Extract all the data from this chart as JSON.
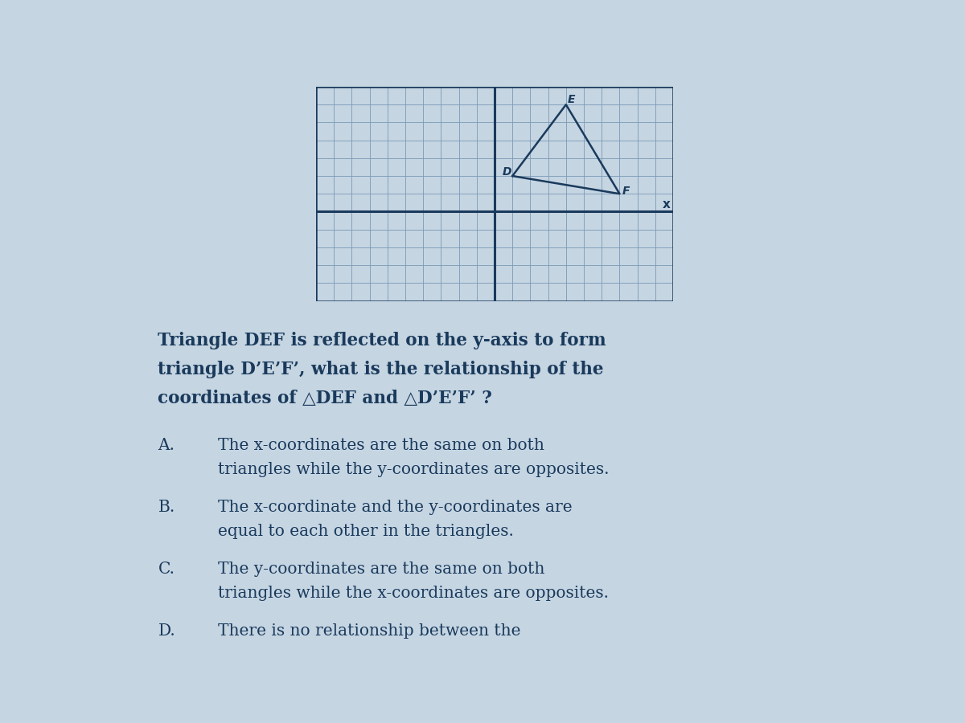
{
  "bg_color": "#c5d5e2",
  "grid_color": "#7a9ab5",
  "axis_color": "#1a3a5c",
  "triangle_color": "#1a3a5c",
  "grid_xlim": [
    -10,
    10
  ],
  "grid_ylim": [
    -5,
    7
  ],
  "triangle_DEF": {
    "D": [
      1,
      2
    ],
    "E": [
      4,
      6
    ],
    "F": [
      7,
      1
    ]
  },
  "label_color": "#1a3a5c",
  "question_lines": [
    "Triangle DEF is reflected on the y-axis to form",
    "triangle D’E’F’, what is the relationship of the",
    "coordinates of △DEF and △D’E’F’ ?"
  ],
  "options": [
    {
      "letter": "A.",
      "lines": [
        "The x-coordinates are the same on both",
        "triangles while the y-coordinates are opposites."
      ]
    },
    {
      "letter": "B.",
      "lines": [
        "The x-coordinate and the y-coordinates are",
        "equal to each other in the triangles."
      ]
    },
    {
      "letter": "C.",
      "lines": [
        "The y-coordinates are the same on both",
        "triangles while the x-coordinates are opposites."
      ]
    },
    {
      "letter": "D.",
      "lines": [
        "There is no relationship between the"
      ]
    }
  ],
  "text_color": "#1a3a5c"
}
